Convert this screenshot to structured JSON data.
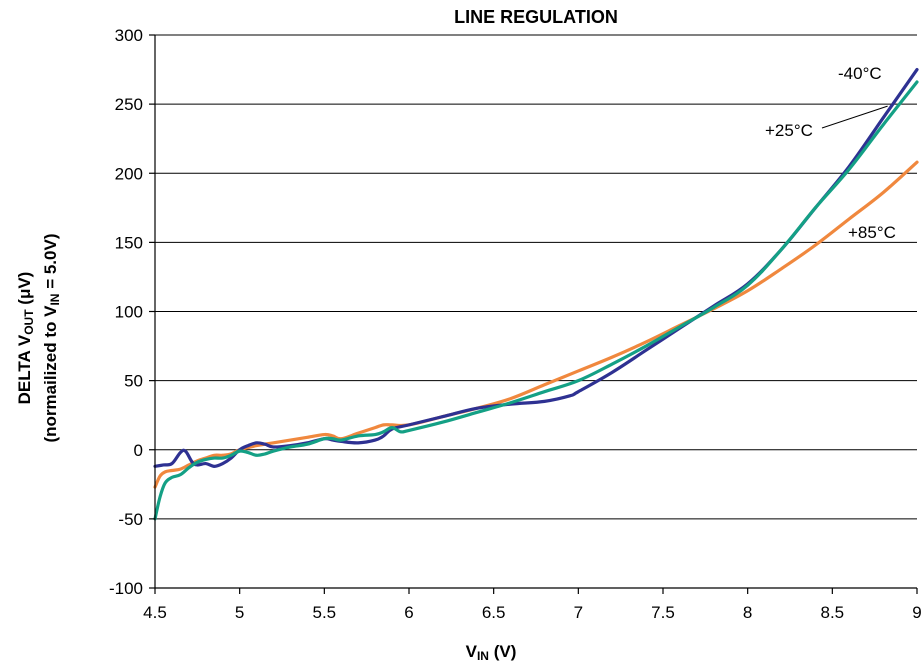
{
  "chart_data": {
    "type": "line",
    "title": "LINE REGULATION",
    "xlabel": {
      "main": "V",
      "sub": "IN",
      "suffix": " (V)"
    },
    "ylabel": {
      "line1": {
        "pre": "DELTA V",
        "sub": "OUT",
        "post": " (μV)"
      },
      "line2": {
        "pre": "(normailized to V",
        "sub": "IN",
        "post": " = 5.0V)"
      }
    },
    "xlim": [
      4.5,
      9
    ],
    "ylim": [
      -100,
      300
    ],
    "xticks": [
      4.5,
      5,
      5.5,
      6,
      6.5,
      7,
      7.5,
      8,
      8.5,
      9
    ],
    "xtick_labels": [
      "4.5",
      "5",
      "5.5",
      "6",
      "6.5",
      "7",
      "7.5",
      "8",
      "8.5",
      "9"
    ],
    "yticks": [
      -100,
      -50,
      0,
      50,
      100,
      150,
      200,
      250,
      300
    ],
    "ytick_labels": [
      "-100",
      "-50",
      "0",
      "50",
      "100",
      "150",
      "200",
      "250",
      "300"
    ],
    "grid": "horizontal",
    "series": [
      {
        "name": "-40°C",
        "color": "#2e3192",
        "x": [
          4.5,
          4.55,
          4.6,
          4.65,
          4.68,
          4.72,
          4.75,
          4.8,
          4.85,
          4.9,
          4.95,
          5.0,
          5.05,
          5.1,
          5.15,
          5.2,
          5.3,
          5.4,
          5.5,
          5.55,
          5.6,
          5.7,
          5.8,
          5.85,
          5.9,
          6.0,
          6.2,
          6.4,
          6.6,
          6.8,
          6.95,
          7.0,
          7.2,
          7.4,
          7.6,
          7.8,
          8.0,
          8.2,
          8.4,
          8.6,
          8.8,
          9.0
        ],
        "y": [
          -12,
          -11,
          -10,
          -2,
          -1,
          -9,
          -11,
          -10,
          -12,
          -10,
          -6,
          0,
          3,
          5,
          4,
          2,
          3,
          5,
          8,
          7,
          6,
          5,
          7,
          10,
          15,
          18,
          24,
          30,
          33,
          35,
          39,
          42,
          56,
          72,
          88,
          104,
          120,
          145,
          175,
          205,
          240,
          275
        ]
      },
      {
        "name": "+25°C",
        "color": "#14a085",
        "x": [
          4.5,
          4.53,
          4.56,
          4.6,
          4.65,
          4.7,
          4.75,
          4.8,
          4.85,
          4.9,
          4.95,
          5.0,
          5.05,
          5.1,
          5.15,
          5.2,
          5.3,
          5.4,
          5.5,
          5.55,
          5.6,
          5.7,
          5.8,
          5.85,
          5.9,
          5.95,
          6.0,
          6.2,
          6.4,
          6.6,
          6.8,
          7.0,
          7.2,
          7.4,
          7.6,
          7.8,
          8.0,
          8.2,
          8.4,
          8.6,
          8.8,
          9.0
        ],
        "y": [
          -50,
          -34,
          -24,
          -20,
          -18,
          -13,
          -9,
          -7,
          -6,
          -6,
          -4,
          -1,
          -2,
          -4,
          -3,
          -1,
          2,
          4,
          8,
          8,
          7,
          10,
          11,
          13,
          16,
          13,
          14,
          20,
          27,
          34,
          42,
          50,
          62,
          75,
          89,
          103,
          119,
          145,
          175,
          203,
          235,
          266
        ]
      },
      {
        "name": "+85°C",
        "color": "#f0883e",
        "x": [
          4.5,
          4.53,
          4.56,
          4.6,
          4.65,
          4.7,
          4.75,
          4.8,
          4.85,
          4.9,
          4.95,
          5.0,
          5.1,
          5.2,
          5.3,
          5.4,
          5.5,
          5.55,
          5.6,
          5.7,
          5.8,
          5.85,
          5.9,
          6.0,
          6.2,
          6.4,
          6.6,
          6.8,
          7.0,
          7.2,
          7.4,
          7.6,
          7.8,
          8.0,
          8.2,
          8.4,
          8.6,
          8.8,
          9.0
        ],
        "y": [
          -27,
          -19,
          -16,
          -15,
          -14,
          -11,
          -8,
          -6,
          -4,
          -4,
          -3,
          0,
          3,
          5,
          7,
          9,
          11,
          10,
          8,
          12,
          16,
          18,
          18,
          18,
          24,
          30,
          37,
          47,
          57,
          67,
          78,
          90,
          102,
          115,
          131,
          148,
          167,
          186,
          208
        ]
      }
    ],
    "annotations": [
      {
        "text": "-40°C",
        "series": "-40°C"
      },
      {
        "text": "+25°C",
        "series": "+25°C",
        "leader_to": {
          "x": 8.85,
          "y": 250
        }
      },
      {
        "text": "+85°C",
        "series": "+85°C"
      }
    ]
  }
}
